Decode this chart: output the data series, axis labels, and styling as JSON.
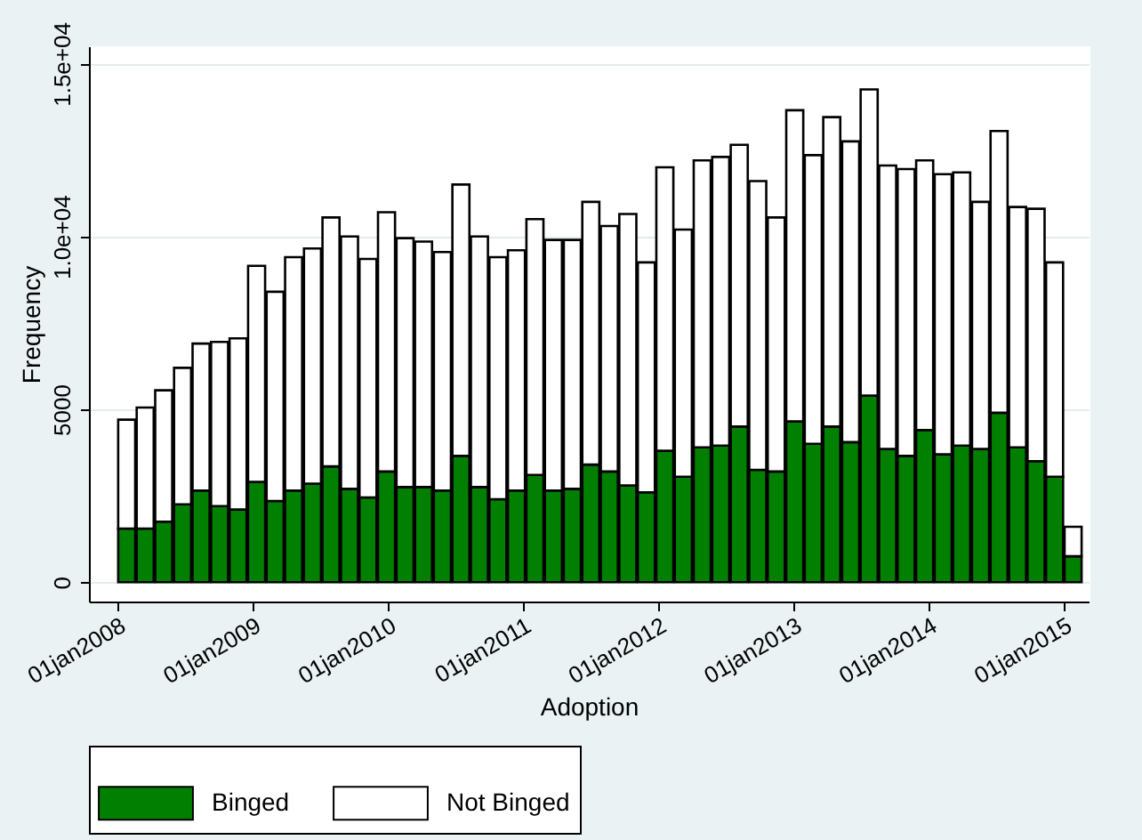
{
  "chart_data": {
    "type": "bar",
    "stacked": true,
    "xlabel": "Adoption",
    "ylabel": "Frequency",
    "x": [
      "2008-01-26",
      "2008-03-16",
      "2008-05-05",
      "2008-06-25",
      "2008-08-14",
      "2008-10-03",
      "2008-11-22",
      "2009-01-11",
      "2009-03-02",
      "2009-04-21",
      "2009-06-11",
      "2009-07-31",
      "2009-09-19",
      "2009-11-08",
      "2009-12-28",
      "2010-02-16",
      "2010-04-07",
      "2010-05-28",
      "2010-07-17",
      "2010-09-05",
      "2010-10-25",
      "2010-12-14",
      "2011-02-02",
      "2011-03-24",
      "2011-05-14",
      "2011-07-03",
      "2011-08-22",
      "2011-10-11",
      "2011-11-30",
      "2012-01-19",
      "2012-03-09",
      "2012-04-29",
      "2012-06-18",
      "2012-08-07",
      "2012-09-26",
      "2012-11-15",
      "2013-01-04",
      "2013-02-23",
      "2013-04-14",
      "2013-06-04",
      "2013-07-24",
      "2013-09-12",
      "2013-11-01",
      "2013-12-21",
      "2014-02-09",
      "2014-03-31",
      "2014-05-21",
      "2014-07-10",
      "2014-08-29",
      "2014-10-18",
      "2014-12-07",
      "2015-01-26"
    ],
    "series": [
      {
        "name": "Binged",
        "color": "#007f00",
        "values": [
          1550,
          1550,
          1750,
          2250,
          2650,
          2200,
          2100,
          2900,
          2350,
          2650,
          2850,
          3350,
          2700,
          2450,
          3200,
          2750,
          2750,
          2650,
          3650,
          2750,
          2400,
          2650,
          3100,
          2650,
          2700,
          3400,
          3200,
          2800,
          2600,
          3800,
          3050,
          3900,
          3950,
          4500,
          3250,
          3200,
          4650,
          4000,
          4500,
          4050,
          5400,
          3850,
          3650,
          4400,
          3700,
          3950,
          3850,
          4900,
          3900,
          3500,
          3050,
          750
        ]
      },
      {
        "name": "Not Binged",
        "color": "#ffffff",
        "values": [
          3150,
          3500,
          3800,
          3950,
          4250,
          4750,
          4950,
          6250,
          6050,
          6750,
          6800,
          7200,
          7300,
          6900,
          7500,
          7200,
          7100,
          6900,
          7850,
          7250,
          7000,
          6950,
          7400,
          7250,
          7200,
          7600,
          7100,
          7850,
          6650,
          8200,
          7150,
          8300,
          8350,
          8150,
          8350,
          7350,
          9000,
          8350,
          8950,
          8700,
          8850,
          8200,
          8300,
          7800,
          8100,
          7900,
          7150,
          8150,
          6950,
          7300,
          6200,
          850
        ]
      }
    ],
    "xlim": [
      "2007-10-16",
      "2015-03-09"
    ],
    "xticks": [
      {
        "value": "2008-01-01",
        "label": "01jan2008"
      },
      {
        "value": "2009-01-01",
        "label": "01jan2009"
      },
      {
        "value": "2010-01-01",
        "label": "01jan2010"
      },
      {
        "value": "2011-01-01",
        "label": "01jan2011"
      },
      {
        "value": "2012-01-01",
        "label": "01jan2012"
      },
      {
        "value": "2013-01-01",
        "label": "01jan2013"
      },
      {
        "value": "2014-01-01",
        "label": "01jan2014"
      },
      {
        "value": "2015-01-01",
        "label": "01jan2015"
      }
    ],
    "ylim": [
      -560,
      15500
    ],
    "yticks": [
      0,
      5000,
      {
        "value": 10000,
        "label": "1.0e+04"
      },
      {
        "value": 15000,
        "label": "1.5e+04"
      }
    ],
    "grid": "y",
    "legend": "bottom"
  }
}
